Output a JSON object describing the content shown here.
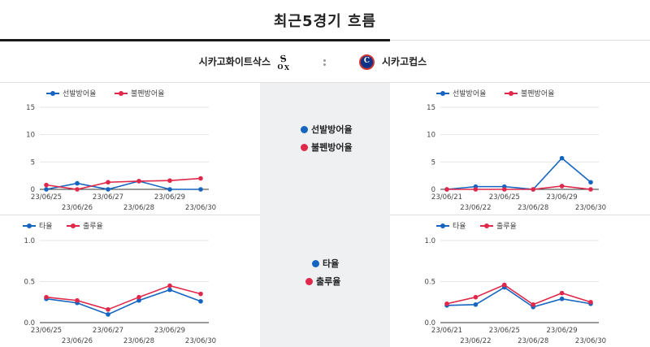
{
  "header": {
    "title": "최근5경기 흐름"
  },
  "teams": {
    "away": {
      "name": "시카고화이트삭스",
      "logo_icon": "white-sox-logo-icon"
    },
    "home": {
      "name": "시카고컵스",
      "logo_icon": "cubs-logo-icon",
      "logo_letter": "C"
    }
  },
  "colors": {
    "blue": "#1565c0",
    "red": "#e0284a"
  },
  "center_legends": {
    "pitching": [
      "선발방어율",
      "불펜방어율"
    ],
    "batting": [
      "타율",
      "출루율"
    ]
  },
  "chart_data": [
    {
      "id": "away-pitching",
      "type": "line",
      "x": [
        "23/06/25",
        "23/06/26",
        "23/06/27",
        "23/06/28",
        "23/06/29",
        "23/06/30"
      ],
      "ylim": [
        0,
        15
      ],
      "yticks": [
        "15",
        "10",
        "5",
        "0"
      ],
      "ytick_values": [
        15,
        10,
        5,
        0
      ],
      "series": [
        {
          "name": "선발방어율",
          "color": "#1565c0",
          "values": [
            0,
            1.1,
            0,
            1.5,
            0,
            0
          ]
        },
        {
          "name": "불펜방어율",
          "color": "#e0284a",
          "values": [
            0.8,
            0,
            1.3,
            1.5,
            1.6,
            2.0
          ]
        }
      ]
    },
    {
      "id": "home-pitching",
      "type": "line",
      "x": [
        "23/06/21",
        "23/06/22",
        "23/06/25",
        "23/06/28",
        "23/06/29",
        "23/06/30"
      ],
      "ylim": [
        0,
        15
      ],
      "yticks": [
        "15",
        "10",
        "5",
        "0"
      ],
      "ytick_values": [
        15,
        10,
        5,
        0
      ],
      "series": [
        {
          "name": "선발방어율",
          "color": "#1565c0",
          "values": [
            0,
            0.5,
            0.5,
            0,
            5.7,
            1.3
          ]
        },
        {
          "name": "불펜방어율",
          "color": "#e0284a",
          "values": [
            0,
            0,
            0,
            0,
            0.6,
            0
          ]
        }
      ]
    },
    {
      "id": "away-batting",
      "type": "line",
      "x": [
        "23/06/25",
        "23/06/26",
        "23/06/27",
        "23/06/28",
        "23/06/29",
        "23/06/30"
      ],
      "ylim": [
        0,
        1.0
      ],
      "yticks": [
        "1.0",
        "0.5",
        "0.0"
      ],
      "ytick_values": [
        1.0,
        0.5,
        0.0
      ],
      "series": [
        {
          "name": "타율",
          "color": "#1565c0",
          "values": [
            0.29,
            0.24,
            0.1,
            0.27,
            0.4,
            0.26
          ]
        },
        {
          "name": "출루율",
          "color": "#e0284a",
          "values": [
            0.31,
            0.27,
            0.16,
            0.31,
            0.45,
            0.35
          ]
        }
      ]
    },
    {
      "id": "home-batting",
      "type": "line",
      "x": [
        "23/06/21",
        "23/06/22",
        "23/06/25",
        "23/06/28",
        "23/06/29",
        "23/06/30"
      ],
      "ylim": [
        0,
        1.0
      ],
      "yticks": [
        "1.0",
        "0.5",
        "0.0"
      ],
      "ytick_values": [
        1.0,
        0.5,
        0.0
      ],
      "series": [
        {
          "name": "타율",
          "color": "#1565c0",
          "values": [
            0.21,
            0.22,
            0.43,
            0.19,
            0.29,
            0.23
          ]
        },
        {
          "name": "출루율",
          "color": "#e0284a",
          "values": [
            0.23,
            0.31,
            0.46,
            0.22,
            0.36,
            0.25
          ]
        }
      ]
    }
  ]
}
